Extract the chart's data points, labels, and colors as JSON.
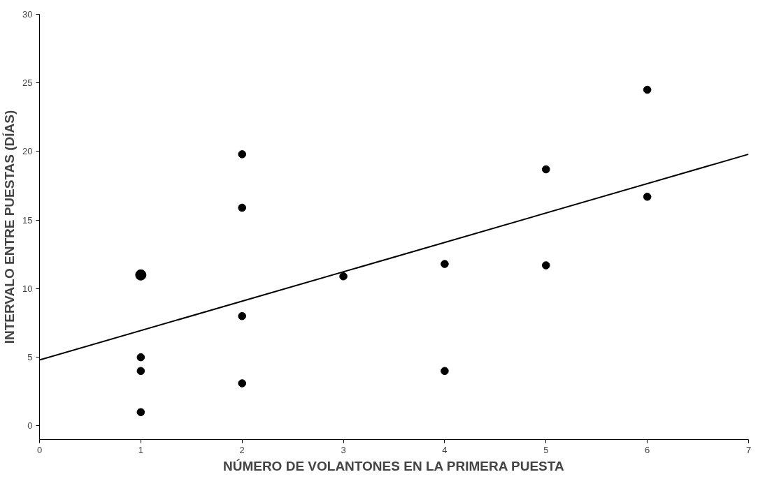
{
  "chart_data": {
    "type": "scatter",
    "xlabel": "NÚMERO DE VOLANTONES EN LA PRIMERA PUESTA",
    "ylabel": "INTERVALO ENTRE PUESTAS (DÍAS)",
    "xlim": [
      0,
      7
    ],
    "ylim": [
      -1,
      30
    ],
    "xticks": [
      0,
      1,
      2,
      3,
      4,
      5,
      6,
      7
    ],
    "yticks": [
      0,
      5,
      10,
      15,
      20,
      25,
      30
    ],
    "grid": false,
    "series": [
      {
        "marker": "circle",
        "color": "#000000",
        "x": [
          1,
          1,
          1,
          1,
          2,
          2,
          2,
          2,
          3,
          4,
          4,
          5,
          5,
          6,
          6
        ],
        "values": [
          11,
          5,
          4,
          1,
          19.8,
          15.9,
          8,
          3.1,
          10.9,
          11.8,
          4,
          18.7,
          11.7,
          24.5,
          16.7
        ],
        "sizes": [
          1,
          0.5,
          0.5,
          0.5,
          0.5,
          0.5,
          0.5,
          0.5,
          0.5,
          0.5,
          0.5,
          0.5,
          0.5,
          0.5,
          0.5
        ]
      },
      {
        "type": "line",
        "color": "#000000",
        "x": [
          0,
          7
        ],
        "values": [
          4.8,
          19.8
        ],
        "line_style": "solid"
      }
    ]
  }
}
